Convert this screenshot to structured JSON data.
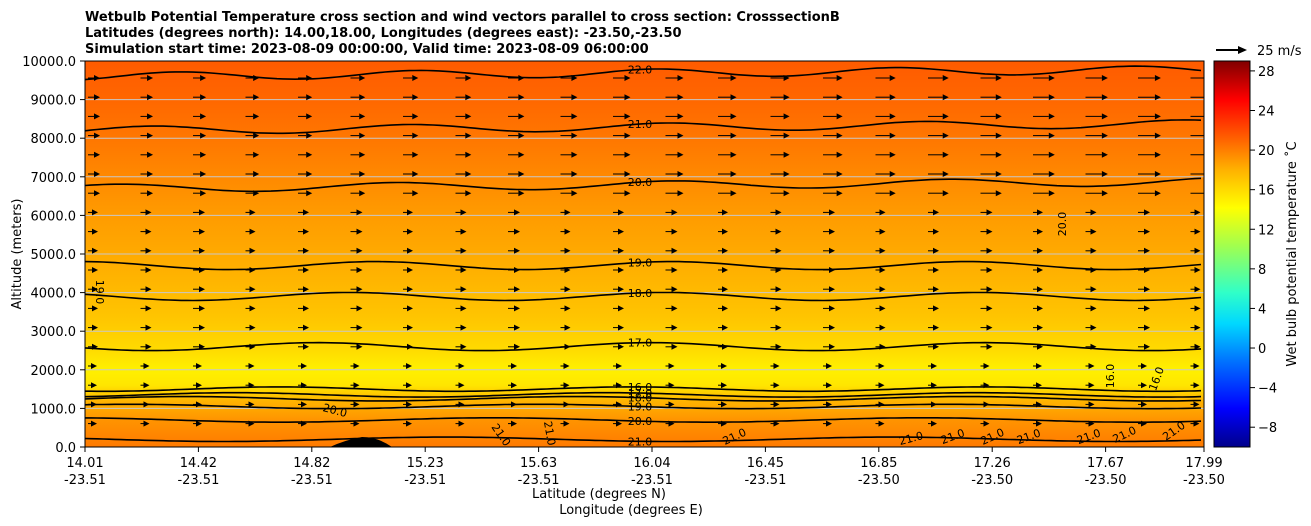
{
  "chart_data": {
    "type": "contour-cross-section",
    "title_lines": [
      "Wetbulb Potential Temperature cross section and wind vectors parallel to cross section: CrosssectionB",
      "Latitudes (degrees north): 14.00,18.00, Longitudes (degrees east): -23.50,-23.50",
      "Simulation start time: 2023-08-09 00:00:00, Valid time: 2023-08-09 06:00:00"
    ],
    "ylabel": "Altitude (meters)",
    "xlabel_1": "Latitude (degrees N)",
    "xlabel_2": "Longitude (degrees E)",
    "ylim": [
      0,
      10000
    ],
    "yticks": [
      "0.0",
      "1000.0",
      "2000.0",
      "3000.0",
      "4000.0",
      "5000.0",
      "6000.0",
      "7000.0",
      "8000.0",
      "9000.0",
      "10000.0"
    ],
    "xticks": [
      {
        "lat": "14.01",
        "lon": "-23.51"
      },
      {
        "lat": "14.42",
        "lon": "-23.51"
      },
      {
        "lat": "14.82",
        "lon": "-23.51"
      },
      {
        "lat": "15.23",
        "lon": "-23.51"
      },
      {
        "lat": "15.63",
        "lon": "-23.51"
      },
      {
        "lat": "16.04",
        "lon": "-23.51"
      },
      {
        "lat": "16.45",
        "lon": "-23.51"
      },
      {
        "lat": "16.85",
        "lon": "-23.50"
      },
      {
        "lat": "17.26",
        "lon": "-23.50"
      },
      {
        "lat": "17.67",
        "lon": "-23.50"
      },
      {
        "lat": "17.99",
        "lon": "-23.50"
      }
    ],
    "colorbar": {
      "label": "Wet bulb potential temperature ˚C",
      "min": -10,
      "max": 29,
      "ticks": [
        "28",
        "24",
        "20",
        "16",
        "12",
        "8",
        "4",
        "0",
        "−4",
        "−8"
      ]
    },
    "quiver_key": "25 m/s",
    "contour_levels": [
      {
        "label": "22.0",
        "altitude": 9600
      },
      {
        "label": "21.0",
        "altitude": 8200
      },
      {
        "label": "20.0",
        "altitude": 6700
      },
      {
        "label": "19.0",
        "altitude": 4700
      },
      {
        "label": "18.0",
        "altitude": 3900
      },
      {
        "label": "17.0",
        "altitude": 2600
      },
      {
        "label": "16.0",
        "altitude": 1500
      },
      {
        "label": "17.0",
        "altitude": 1350
      },
      {
        "label": "18.0",
        "altitude": 1250
      },
      {
        "label": "19.0",
        "altitude": 1050
      },
      {
        "label": "20.0",
        "altitude": 700
      },
      {
        "label": "21.0",
        "altitude": 200
      }
    ],
    "extra_contour_labels": [
      "19.0",
      "20.0",
      "20.0",
      "16.0",
      "16.0",
      "21.0",
      "21.0",
      "21.0",
      "21.0",
      "21.0",
      "21.0",
      "21.0",
      "21.0",
      "21.0",
      "21.0"
    ],
    "grid": "horizontal"
  }
}
